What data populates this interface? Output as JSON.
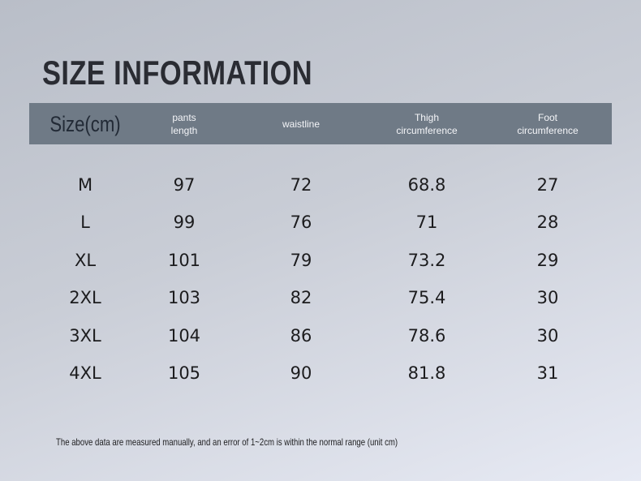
{
  "title": "SIZE INFORMATION",
  "table": {
    "headers": [
      [
        "Size(cm)"
      ],
      [
        "pants",
        "length"
      ],
      [
        "waistline"
      ],
      [
        "Thigh",
        "circumference"
      ],
      [
        "Foot",
        "circumference"
      ]
    ],
    "rows": [
      [
        "M",
        "97",
        "72",
        "68.8",
        "27"
      ],
      [
        "L",
        "99",
        "76",
        "71",
        "28"
      ],
      [
        "XL",
        "101",
        "79",
        "73.2",
        "29"
      ],
      [
        "2XL",
        "103",
        "82",
        "75.4",
        "30"
      ],
      [
        "3XL",
        "104",
        "86",
        "78.6",
        "30"
      ],
      [
        "4XL",
        "105",
        "90",
        "81.8",
        "31"
      ]
    ]
  },
  "footnote": "The above data are measured manually, and an error of 1~2cm is within the normal range (unit cm)"
}
